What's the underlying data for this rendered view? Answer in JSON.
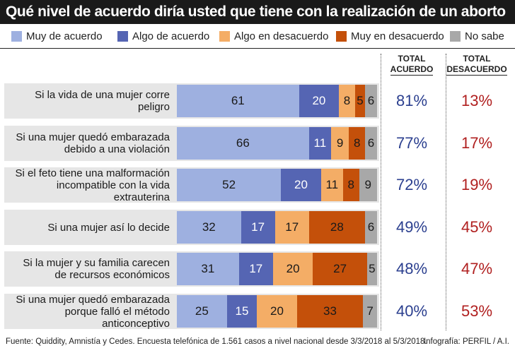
{
  "title": "Qué nivel de acuerdo diría usted que tiene con la realización de un aborto",
  "legend": [
    {
      "label": "Muy de acuerdo",
      "color": "#9eb0e0"
    },
    {
      "label": "Algo de acuerdo",
      "color": "#5565b3"
    },
    {
      "label": "Algo en desacuerdo",
      "color": "#f4ad66"
    },
    {
      "label": "Muy en desacuerdo",
      "color": "#c4500a"
    },
    {
      "label": "No sabe",
      "color": "#a8a8a8"
    }
  ],
  "total_headers": {
    "agree": [
      "TOTAL",
      "ACUERDO"
    ],
    "disagree": [
      "TOTAL",
      "DESACUERDO"
    ]
  },
  "chart_data": {
    "type": "bar",
    "orientation": "horizontal",
    "stacked": true,
    "categories": [
      [
        "Si la vida de una mujer corre peligro"
      ],
      [
        "Si una mujer quedó embarazada",
        "debido a una violación"
      ],
      [
        "Si el feto tiene una malformación",
        "incompatible con la vida extrauterina"
      ],
      [
        "Si una mujer así lo decide"
      ],
      [
        "Si la mujer y su familia carecen",
        "de recursos económicos"
      ],
      [
        "Si una mujer quedó embarazada",
        "porque falló el método anticonceptivo"
      ]
    ],
    "series": [
      {
        "name": "Muy de acuerdo",
        "values": [
          61,
          66,
          52,
          32,
          31,
          25
        ]
      },
      {
        "name": "Algo de acuerdo",
        "values": [
          20,
          11,
          20,
          17,
          17,
          15
        ]
      },
      {
        "name": "Algo en desacuerdo",
        "values": [
          8,
          9,
          11,
          17,
          20,
          20
        ]
      },
      {
        "name": "Muy en desacuerdo",
        "values": [
          5,
          8,
          8,
          28,
          27,
          33
        ]
      },
      {
        "name": "No sabe",
        "values": [
          6,
          6,
          9,
          6,
          5,
          7
        ]
      }
    ],
    "total_acuerdo": [
      "81%",
      "77%",
      "72%",
      "49%",
      "48%",
      "40%"
    ],
    "total_desacuerdo": [
      "13%",
      "17%",
      "19%",
      "45%",
      "47%",
      "53%"
    ],
    "xlim": [
      0,
      100
    ]
  },
  "footer": {
    "source": "Fuente: Quiddity, Amnistía y Cedes. Encuesta telefónica de 1.561 casos a nivel nacional desde 3/3/2018 al 5/3/2018.",
    "credit": "Infografía: PERFIL / A.I."
  }
}
